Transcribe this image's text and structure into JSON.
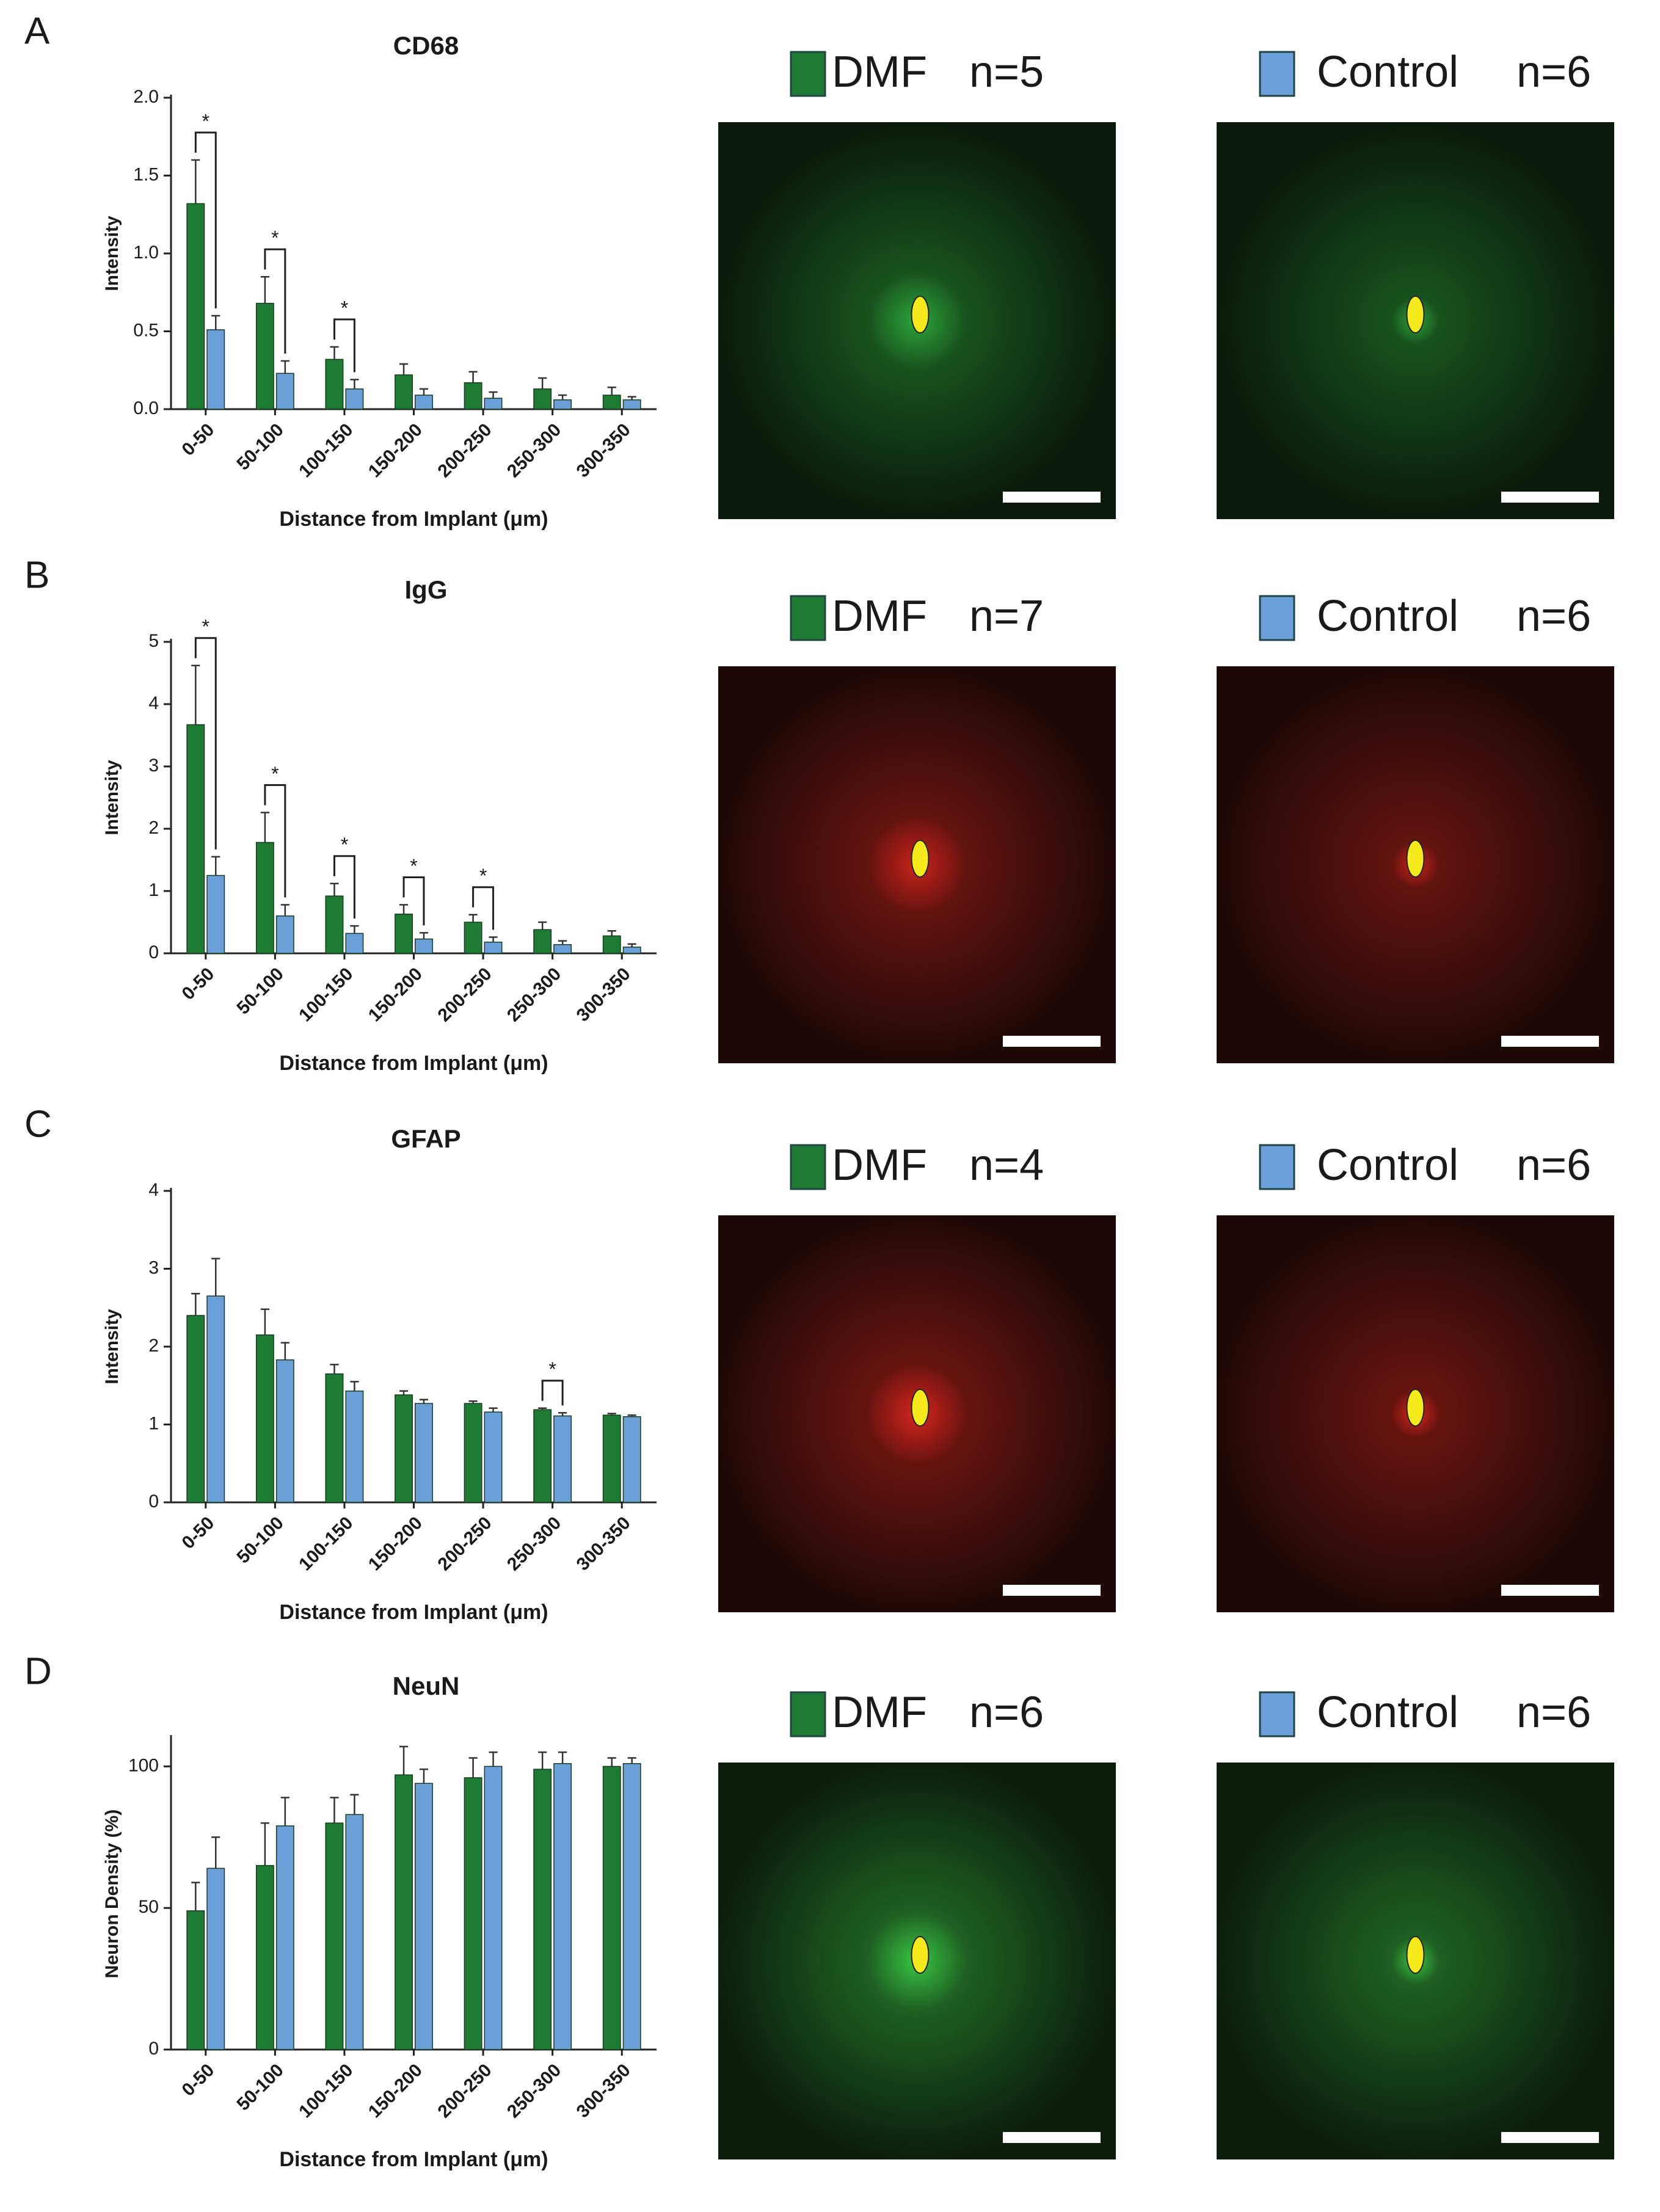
{
  "chart_data": [
    {
      "type": "bar",
      "panel": "A",
      "title": "CD68",
      "ylabel": "Intensity",
      "xlabel": "Distance from Implant  (μm)",
      "categories": [
        "0-50",
        "50-100",
        "100-150",
        "150-200",
        "200-250",
        "250-300",
        "300-350"
      ],
      "series": [
        {
          "name": "DMF",
          "n": "n=5",
          "color": "#1e7b34",
          "values": [
            1.32,
            0.68,
            0.32,
            0.22,
            0.17,
            0.13,
            0.09
          ],
          "errors": [
            0.28,
            0.17,
            0.08,
            0.07,
            0.07,
            0.07,
            0.05
          ]
        },
        {
          "name": "Control",
          "n": "n=6",
          "color": "#6a9fd8",
          "values": [
            0.51,
            0.23,
            0.13,
            0.09,
            0.07,
            0.06,
            0.06
          ],
          "errors": [
            0.09,
            0.08,
            0.06,
            0.04,
            0.04,
            0.03,
            0.02
          ]
        }
      ],
      "significance": [
        "*",
        "*",
        "*",
        null,
        null,
        null,
        null
      ],
      "ylim": [
        0,
        2
      ],
      "yticks": [
        {
          "value": 0,
          "label": "0.0"
        },
        0.5,
        {
          "value": 1,
          "label": "1.0"
        },
        1.5,
        {
          "value": 2,
          "label": "2.0"
        }
      ],
      "image_color": "#2fae3c"
    },
    {
      "type": "bar",
      "panel": "B",
      "title": "IgG",
      "ylabel": "Intensity",
      "xlabel": "Distance from Implant  (μm)",
      "categories": [
        "0-50",
        "50-100",
        "100-150",
        "150-200",
        "200-250",
        "250-300",
        "300-350"
      ],
      "series": [
        {
          "name": "DMF",
          "n": "n=7",
          "color": "#1e7b34",
          "values": [
            3.67,
            1.78,
            0.92,
            0.63,
            0.5,
            0.38,
            0.28
          ],
          "errors": [
            0.95,
            0.48,
            0.2,
            0.15,
            0.12,
            0.12,
            0.08
          ]
        },
        {
          "name": "Control",
          "n": "n=6",
          "color": "#6a9fd8",
          "values": [
            1.25,
            0.6,
            0.32,
            0.23,
            0.18,
            0.14,
            0.1
          ],
          "errors": [
            0.3,
            0.18,
            0.12,
            0.1,
            0.08,
            0.06,
            0.05
          ]
        }
      ],
      "significance": [
        "*",
        "*",
        "*",
        "*",
        "*",
        null,
        null
      ],
      "ylim": [
        0,
        5
      ],
      "yticks": [
        0,
        1,
        2,
        3,
        4,
        5
      ],
      "image_color": "#d4241c"
    },
    {
      "type": "bar",
      "panel": "C",
      "title": "GFAP",
      "ylabel": "Intensity",
      "xlabel": "Distance from Implant  (μm)",
      "categories": [
        "0-50",
        "50-100",
        "100-150",
        "150-200",
        "200-250",
        "250-300",
        "300-350"
      ],
      "series": [
        {
          "name": "DMF",
          "n": "n=4",
          "color": "#1e7b34",
          "values": [
            2.4,
            2.15,
            1.65,
            1.38,
            1.27,
            1.19,
            1.12
          ],
          "errors": [
            0.28,
            0.33,
            0.12,
            0.05,
            0.03,
            0.02,
            0.02
          ]
        },
        {
          "name": "Control",
          "n": "n=6",
          "color": "#6a9fd8",
          "values": [
            2.65,
            1.83,
            1.43,
            1.27,
            1.16,
            1.11,
            1.1
          ],
          "errors": [
            0.48,
            0.22,
            0.12,
            0.05,
            0.05,
            0.04,
            0.02
          ]
        }
      ],
      "significance": [
        null,
        null,
        null,
        null,
        null,
        "*",
        null
      ],
      "ylim": [
        0,
        4
      ],
      "yticks": [
        0,
        1,
        2,
        3,
        4
      ],
      "image_color": "#e0261e"
    },
    {
      "type": "bar",
      "panel": "D",
      "title": "NeuN",
      "ylabel": "Neuron Density  (%)",
      "xlabel": "Distance from Implant  (μm)",
      "categories": [
        "0-50",
        "50-100",
        "100-150",
        "150-200",
        "200-250",
        "250-300",
        "300-350"
      ],
      "series": [
        {
          "name": "DMF",
          "n": "n=6",
          "color": "#1e7b34",
          "values": [
            49,
            65,
            80,
            97,
            96,
            99,
            100
          ],
          "errors": [
            10,
            15,
            9,
            10,
            7,
            6,
            3
          ]
        },
        {
          "name": "Control",
          "n": "n=6",
          "color": "#6a9fd8",
          "values": [
            64,
            79,
            83,
            94,
            100,
            101,
            101
          ],
          "errors": [
            11,
            10,
            7,
            5,
            5,
            4,
            2
          ]
        }
      ],
      "significance": [
        null,
        null,
        null,
        null,
        null,
        null,
        null
      ],
      "ylim": [
        0,
        110
      ],
      "yticks": [
        0,
        50,
        100
      ],
      "image_color": "#3ccf46"
    }
  ]
}
